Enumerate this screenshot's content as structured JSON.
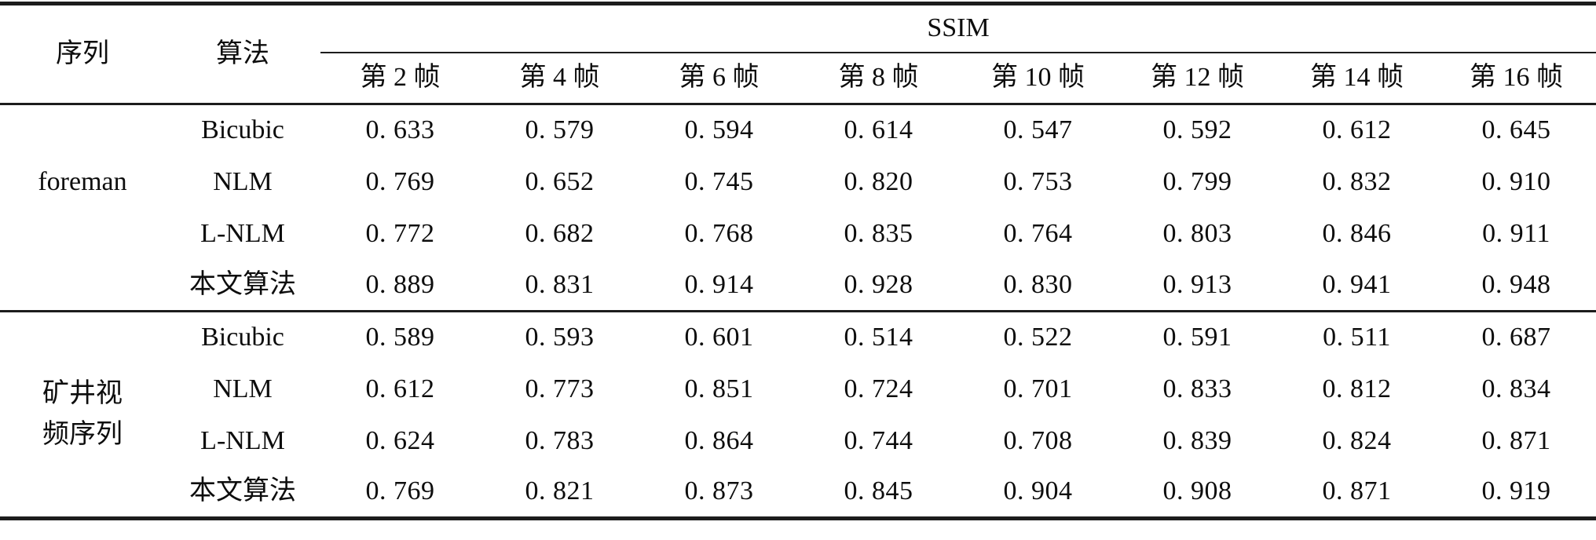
{
  "table": {
    "col_sequence": "序列",
    "col_algorithm": "算法",
    "group_header": "SSIM",
    "frame_headers": [
      "第 2 帧",
      "第 4 帧",
      "第 6 帧",
      "第 8 帧",
      "第 10 帧",
      "第 12 帧",
      "第 14 帧",
      "第 16 帧"
    ],
    "sections": [
      {
        "sequence": "foreman",
        "rows": [
          {
            "algorithm": "Bicubic",
            "values": [
              "0. 633",
              "0. 579",
              "0. 594",
              "0. 614",
              "0. 547",
              "0. 592",
              "0. 612",
              "0. 645"
            ]
          },
          {
            "algorithm": "NLM",
            "values": [
              "0. 769",
              "0. 652",
              "0. 745",
              "0. 820",
              "0. 753",
              "0. 799",
              "0. 832",
              "0. 910"
            ]
          },
          {
            "algorithm": "L-NLM",
            "values": [
              "0. 772",
              "0. 682",
              "0. 768",
              "0. 835",
              "0. 764",
              "0. 803",
              "0. 846",
              "0. 911"
            ]
          },
          {
            "algorithm": "本文算法",
            "values": [
              "0. 889",
              "0. 831",
              "0. 914",
              "0. 928",
              "0. 830",
              "0. 913",
              "0. 941",
              "0. 948"
            ]
          }
        ]
      },
      {
        "sequence": "矿井视频序列",
        "sequence_line1": "矿井视",
        "sequence_line2": "频序列",
        "rows": [
          {
            "algorithm": "Bicubic",
            "values": [
              "0. 589",
              "0. 593",
              "0. 601",
              "0. 514",
              "0. 522",
              "0. 591",
              "0. 511",
              "0. 687"
            ]
          },
          {
            "algorithm": "NLM",
            "values": [
              "0. 612",
              "0. 773",
              "0. 851",
              "0. 724",
              "0. 701",
              "0. 833",
              "0. 812",
              "0. 834"
            ]
          },
          {
            "algorithm": "L-NLM",
            "values": [
              "0. 624",
              "0. 783",
              "0. 864",
              "0. 744",
              "0. 708",
              "0. 839",
              "0. 824",
              "0. 871"
            ]
          },
          {
            "algorithm": "本文算法",
            "values": [
              "0. 769",
              "0. 821",
              "0. 873",
              "0. 845",
              "0. 904",
              "0. 908",
              "0. 871",
              "0. 919"
            ]
          }
        ]
      }
    ]
  },
  "chart_data": {
    "type": "table",
    "title": "SSIM",
    "row_groups": [
      "foreman",
      "矿井视频序列"
    ],
    "row_labels": [
      "Bicubic",
      "NLM",
      "L-NLM",
      "本文算法"
    ],
    "columns": [
      "第 2 帧",
      "第 4 帧",
      "第 6 帧",
      "第 8 帧",
      "第 10 帧",
      "第 12 帧",
      "第 14 帧",
      "第 16 帧"
    ],
    "series": [
      {
        "group": "foreman",
        "name": "Bicubic",
        "values": [
          0.633,
          0.579,
          0.594,
          0.614,
          0.547,
          0.592,
          0.612,
          0.645
        ]
      },
      {
        "group": "foreman",
        "name": "NLM",
        "values": [
          0.769,
          0.652,
          0.745,
          0.82,
          0.753,
          0.799,
          0.832,
          0.91
        ]
      },
      {
        "group": "foreman",
        "name": "L-NLM",
        "values": [
          0.772,
          0.682,
          0.768,
          0.835,
          0.764,
          0.803,
          0.846,
          0.911
        ]
      },
      {
        "group": "foreman",
        "name": "本文算法",
        "values": [
          0.889,
          0.831,
          0.914,
          0.928,
          0.83,
          0.913,
          0.941,
          0.948
        ]
      },
      {
        "group": "矿井视频序列",
        "name": "Bicubic",
        "values": [
          0.589,
          0.593,
          0.601,
          0.514,
          0.522,
          0.591,
          0.511,
          0.687
        ]
      },
      {
        "group": "矿井视频序列",
        "name": "NLM",
        "values": [
          0.612,
          0.773,
          0.851,
          0.724,
          0.701,
          0.833,
          0.812,
          0.834
        ]
      },
      {
        "group": "矿井视频序列",
        "name": "L-NLM",
        "values": [
          0.624,
          0.783,
          0.864,
          0.744,
          0.708,
          0.839,
          0.824,
          0.871
        ]
      },
      {
        "group": "矿井视频序列",
        "name": "本文算法",
        "values": [
          0.769,
          0.821,
          0.873,
          0.845,
          0.904,
          0.908,
          0.871,
          0.919
        ]
      }
    ]
  }
}
